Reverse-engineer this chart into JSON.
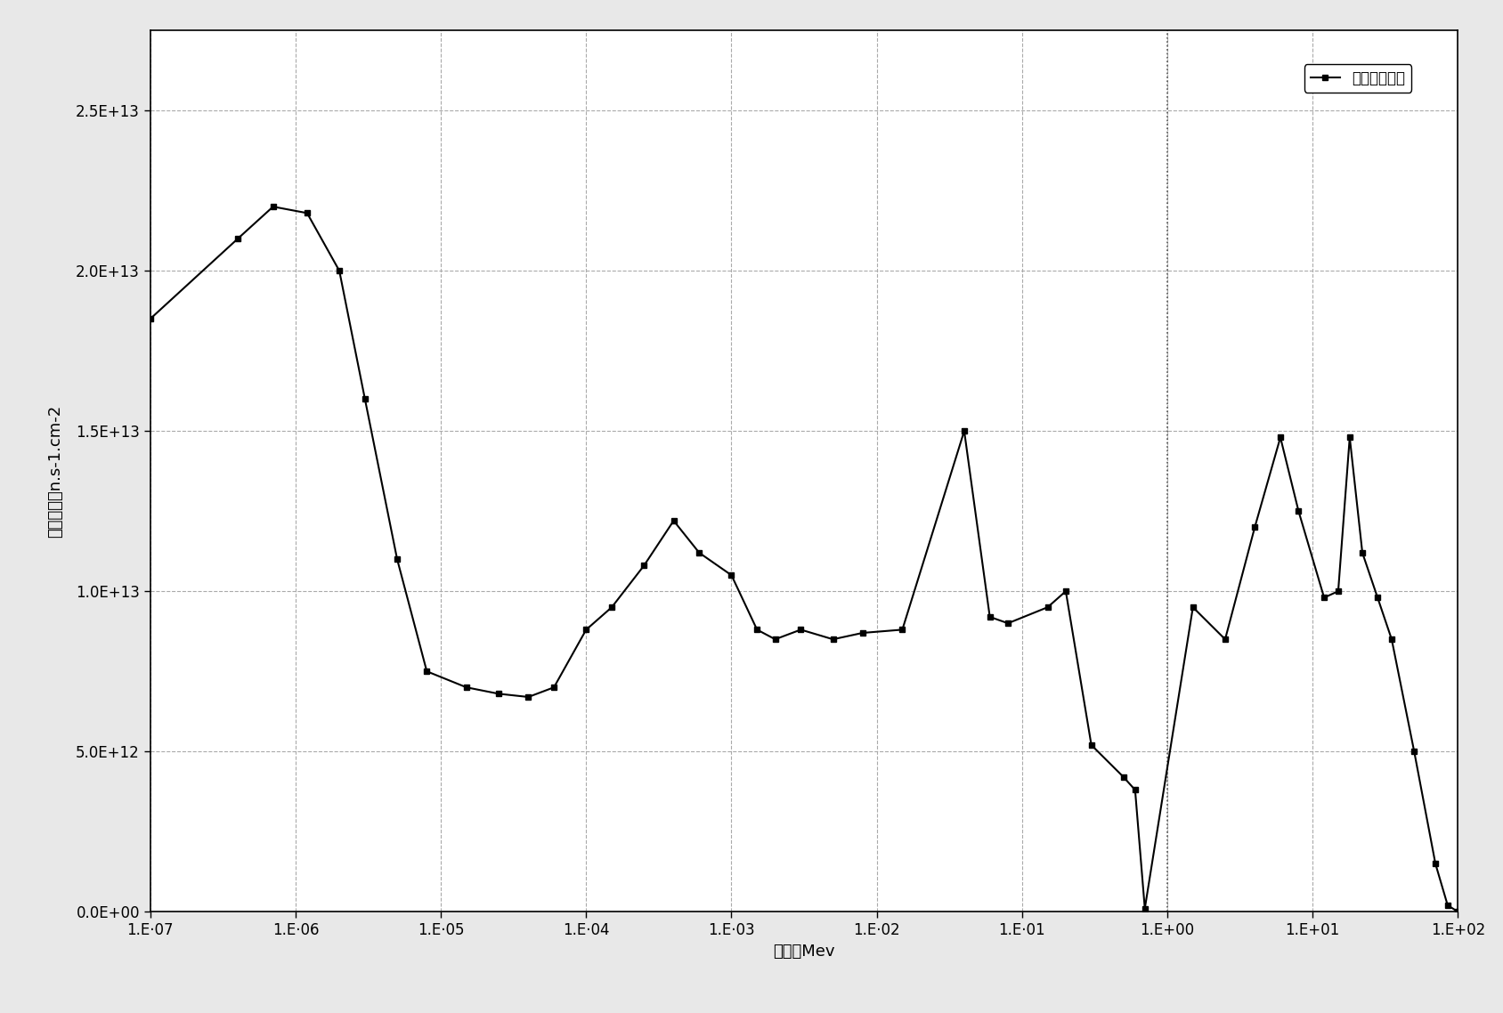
{
  "title": "",
  "xlabel": "能量，Mev",
  "ylabel": "中子通量，n.s-1.cm-2",
  "legend_label": "燃料组件模型",
  "xlim": [
    1e-07,
    100.0
  ],
  "ylim": [
    0,
    27500000000000.0
  ],
  "yticks": [
    0,
    5000000000000.0,
    10000000000000.0,
    15000000000000.0,
    20000000000000.0,
    25000000000000.0
  ],
  "ytick_labels": [
    "0.0E+00",
    "5.0E+12",
    "1.0E+13",
    "1.5E+13",
    "2.0E+13",
    "2.5E+13"
  ],
  "xtick_positions": [
    1e-07,
    1e-06,
    1e-05,
    0.0001,
    0.001,
    0.01,
    0.1,
    1.0,
    10.0,
    100.0
  ],
  "xtick_labels": [
    "1.E‧07",
    "1.E‧06",
    "1.E‧05",
    "1.E‧04",
    "1.E‧03",
    "1.E‧02",
    "1.E‧01",
    "1.E+00",
    "1.E+01",
    "1.E+02"
  ],
  "line_color": "#000000",
  "marker": "s",
  "markersize": 5,
  "linewidth": 1.5,
  "background_color": "#f0f0f0",
  "plot_bg_color": "#ffffff",
  "grid_color": "#888888",
  "dotted_vline_x": 1.0,
  "x_data": [
    1e-07,
    4e-07,
    7e-07,
    1.2e-06,
    2e-06,
    3e-06,
    5e-06,
    8e-06,
    1.5e-05,
    2.5e-05,
    4e-05,
    6e-05,
    0.0001,
    0.00015,
    0.00025,
    0.0004,
    0.0006,
    0.001,
    0.0015,
    0.002,
    0.003,
    0.005,
    0.008,
    0.015,
    0.04,
    0.06,
    0.08,
    0.15,
    0.2,
    0.3,
    0.5,
    0.6,
    0.7,
    1.5,
    2.5,
    4,
    6,
    8,
    12,
    15,
    18,
    22,
    28,
    35,
    50,
    70,
    85,
    100
  ],
  "y_data": [
    18500000000000.0,
    21000000000000.0,
    22000000000000.0,
    21800000000000.0,
    20000000000000.0,
    16000000000000.0,
    11000000000000.0,
    7500000000000.0,
    7000000000000.0,
    6800000000000.0,
    6700000000000.0,
    7000000000000.0,
    8800000000000.0,
    9500000000000.0,
    10800000000000.0,
    12200000000000.0,
    11200000000000.0,
    10500000000000.0,
    8800000000000.0,
    8500000000000.0,
    8800000000000.0,
    8500000000000.0,
    8700000000000.0,
    8800000000000.0,
    15000000000000.0,
    9200000000000.0,
    9000000000000.0,
    9500000000000.0,
    10000000000000.0,
    5200000000000.0,
    4200000000000.0,
    3800000000000.0,
    100000000000.0,
    9500000000000.0,
    8500000000000.0,
    12000000000000.0,
    14800000000000.0,
    12500000000000.0,
    9800000000000.0,
    10000000000000.0,
    14800000000000.0,
    11200000000000.0,
    9800000000000.0,
    8500000000000.0,
    5000000000000.0,
    1500000000000.0,
    200000000000.0,
    0
  ]
}
